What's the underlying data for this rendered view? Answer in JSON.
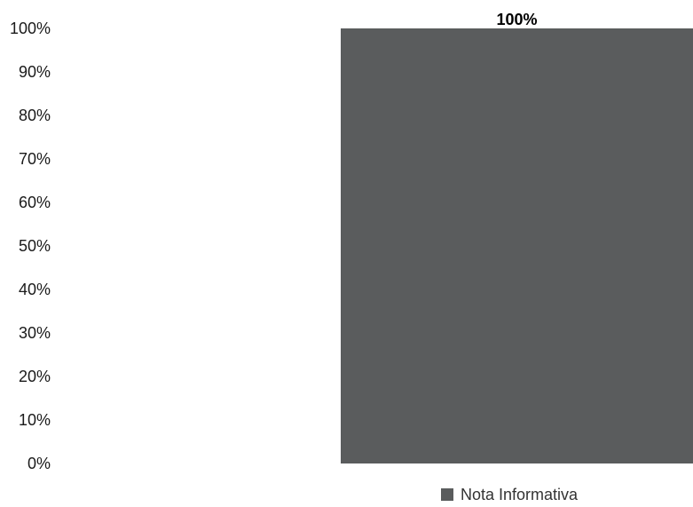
{
  "chart_data": {
    "type": "bar",
    "categories": [
      ""
    ],
    "series": [
      {
        "name": "Nota Informativa",
        "values": [
          100
        ],
        "color": "#5a5c5d"
      }
    ],
    "ylim": [
      0,
      100
    ],
    "yticks": [
      "0%",
      "10%",
      "20%",
      "30%",
      "40%",
      "50%",
      "60%",
      "70%",
      "80%",
      "90%",
      "100%"
    ],
    "data_labels": [
      "100%"
    ],
    "grid": false,
    "legend_position": "bottom"
  }
}
